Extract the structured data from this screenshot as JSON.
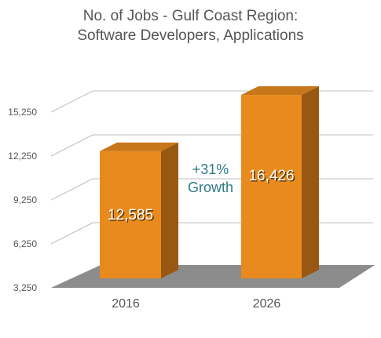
{
  "chart_data": {
    "type": "bar",
    "title": "No. of Jobs - Gulf Coast Region:",
    "subtitle": "Software Developers, Applications",
    "categories": [
      "2016",
      "2026"
    ],
    "values": [
      12585,
      16426
    ],
    "data_labels": [
      "12,585",
      "16,426"
    ],
    "y_ticks": [
      "3,250",
      "6,250",
      "9,250",
      "12,250",
      "15,250"
    ],
    "ylim": [
      3250,
      18250
    ],
    "grid": true,
    "annotation_lines": [
      "+31%",
      "Growth"
    ],
    "colors": {
      "bar_front": "#E88A1E",
      "bar_side": "#985811",
      "bar_top": "#C8761A",
      "floor": "#8C8C8C",
      "annotation": "#2E7A86",
      "axis_text": "#555555",
      "grid": "#BFBFBF"
    }
  }
}
